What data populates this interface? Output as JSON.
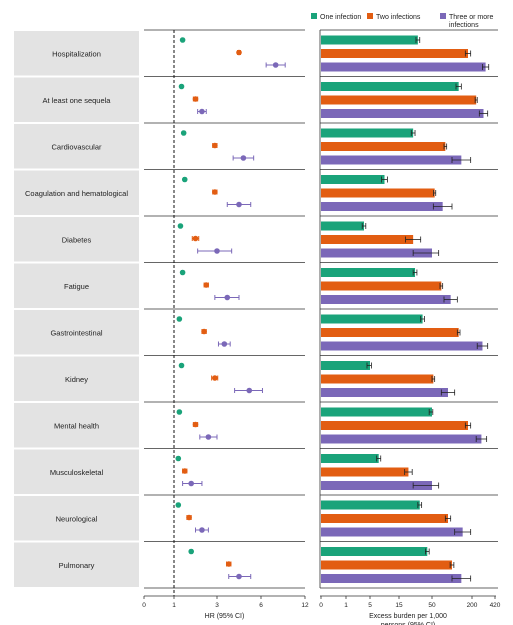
{
  "chart_data": {
    "type": "forest-and-bar",
    "categories": [
      "Hospitalization",
      "At least one sequela",
      "Cardiovascular",
      "Coagulation and hematological",
      "Diabetes",
      "Fatigue",
      "Gastrointestinal",
      "Kidney",
      "Mental health",
      "Musculoskeletal",
      "Neurological",
      "Pulmonary"
    ],
    "legend": [
      "One infection",
      "Two infections",
      "Three or more infections"
    ],
    "colors": [
      "#1aa37a",
      "#e25d12",
      "#7b68b8"
    ],
    "hr_panel": {
      "xlabel": "HR (95% CI)",
      "xlim": [
        0,
        12
      ],
      "ticks": [
        "0",
        "1",
        "3",
        "6",
        "12"
      ],
      "reference_line": 1,
      "series": [
        {
          "name": "One infection",
          "values": [
            1.4,
            1.35,
            1.45,
            1.5,
            1.3,
            1.4,
            1.25,
            1.35,
            1.25,
            1.2,
            1.2,
            1.8
          ],
          "ci_low": [
            1.35,
            1.3,
            1.4,
            1.45,
            1.25,
            1.35,
            1.2,
            1.3,
            1.2,
            1.15,
            1.15,
            1.75
          ],
          "ci_high": [
            1.45,
            1.4,
            1.5,
            1.55,
            1.35,
            1.45,
            1.3,
            1.4,
            1.3,
            1.25,
            1.25,
            1.85
          ]
        },
        {
          "name": "Two infections",
          "values": [
            4.5,
            2.0,
            2.9,
            2.9,
            2.0,
            2.5,
            2.4,
            2.9,
            2.0,
            1.5,
            1.7,
            3.8
          ],
          "ci_low": [
            4.4,
            1.9,
            2.8,
            2.8,
            1.85,
            2.4,
            2.3,
            2.75,
            1.9,
            1.4,
            1.6,
            3.65
          ],
          "ci_high": [
            4.6,
            2.1,
            3.0,
            3.0,
            2.15,
            2.6,
            2.5,
            3.05,
            2.1,
            1.6,
            1.8,
            3.95
          ]
        },
        {
          "name": "Three or more infections",
          "values": [
            8.0,
            2.3,
            4.8,
            4.5,
            3.0,
            3.7,
            3.5,
            5.2,
            2.6,
            1.8,
            2.3,
            4.5
          ],
          "ci_low": [
            6.7,
            2.1,
            4.1,
            3.7,
            2.1,
            2.9,
            3.1,
            4.2,
            2.2,
            1.4,
            2.0,
            3.8
          ],
          "ci_high": [
            9.3,
            2.5,
            5.5,
            5.3,
            4.0,
            4.5,
            3.9,
            6.2,
            3.0,
            2.3,
            2.6,
            5.3
          ]
        }
      ]
    },
    "burden_panel": {
      "xlabel_line1": "Excess burden per 1,000",
      "xlabel_line2": "persons (95% CI)",
      "ticks": [
        "0",
        "1",
        "5",
        "15",
        "50",
        "200",
        "420"
      ],
      "tick_values": [
        0,
        1,
        5,
        15,
        50,
        200,
        420
      ],
      "series": [
        {
          "name": "One infection",
          "values": [
            35,
            150,
            30,
            10,
            4,
            32,
            40,
            5,
            50,
            8,
            37,
            45
          ],
          "ci_low": [
            33,
            140,
            28,
            9,
            3.7,
            30,
            38,
            4.5,
            47,
            7.3,
            35,
            43
          ],
          "ci_high": [
            37,
            160,
            32,
            11,
            4.3,
            34,
            42,
            5.5,
            53,
            8.7,
            39,
            47
          ]
        },
        {
          "name": "Two infections",
          "values": [
            185,
            240,
            100,
            60,
            30,
            85,
            150,
            55,
            185,
            25,
            110,
            125
          ],
          "ci_low": [
            175,
            230,
            95,
            56,
            22,
            80,
            145,
            50,
            175,
            21,
            100,
            118
          ],
          "ci_high": [
            195,
            250,
            105,
            64,
            38,
            90,
            155,
            60,
            195,
            29,
            120,
            132
          ]
        },
        {
          "name": "Three or more infections",
          "values": [
            330,
            310,
            160,
            90,
            50,
            120,
            300,
            110,
            290,
            50,
            165,
            160
          ],
          "ci_low": [
            300,
            270,
            125,
            55,
            30,
            95,
            250,
            85,
            240,
            30,
            135,
            125
          ],
          "ci_high": [
            360,
            350,
            195,
            125,
            75,
            145,
            350,
            135,
            340,
            75,
            195,
            195
          ]
        }
      ]
    }
  }
}
